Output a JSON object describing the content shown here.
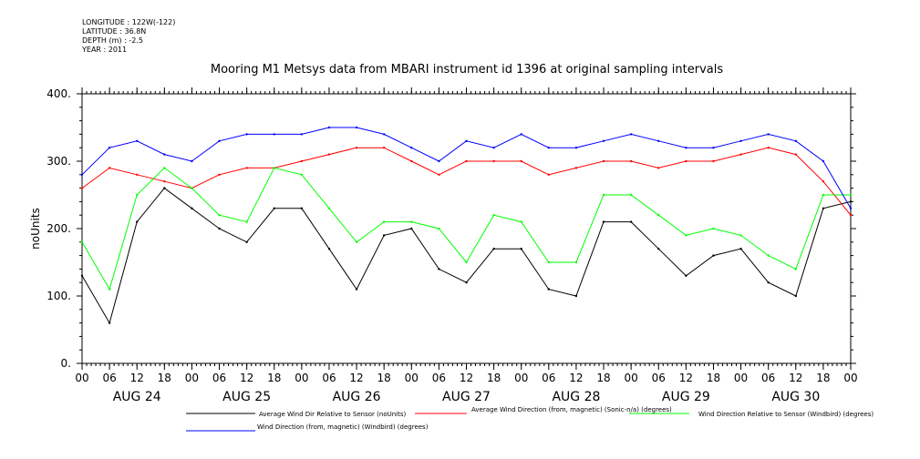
{
  "header": {
    "longitude": "LONGITUDE : 122W(-122)",
    "latitude": "LATITUDE : 36.8N",
    "depth": "DEPTH (m) : -2.5",
    "year": "YEAR : 2011"
  },
  "chart_data": {
    "type": "line",
    "title": "Mooring M1 Metsys data from MBARI instrument id 1396 at original sampling intervals",
    "ylabel": "noUnits",
    "xlabel": "",
    "ylim": [
      0,
      400
    ],
    "yticks": [
      "0.",
      "100.",
      "200.",
      "300.",
      "400."
    ],
    "xticks": [
      "00",
      "06",
      "12",
      "18",
      "00",
      "06",
      "12",
      "18",
      "00",
      "06",
      "12",
      "18",
      "00",
      "06",
      "12",
      "18",
      "00",
      "06",
      "12",
      "18",
      "00",
      "06",
      "12",
      "18",
      "00",
      "06",
      "12",
      "18",
      "00"
    ],
    "days": [
      "AUG 24",
      "AUG 25",
      "AUG 26",
      "AUG 27",
      "AUG 28",
      "AUG 29",
      "AUG 30"
    ],
    "x_units": "hours since 2011-08-24 00:00",
    "grid": false,
    "legend_position": "bottom",
    "series": [
      {
        "name": "Average Wind Dir Relative to Sensor (noUnits)",
        "color": "#000000",
        "x": [
          0,
          6,
          12,
          18,
          24,
          30,
          36,
          42,
          48,
          54,
          60,
          66,
          72,
          78,
          84,
          90,
          96,
          102,
          108,
          114,
          120,
          126,
          132,
          138,
          144,
          150,
          156,
          162,
          168
        ],
        "y": [
          130,
          60,
          210,
          260,
          230,
          200,
          180,
          230,
          230,
          170,
          110,
          190,
          200,
          140,
          120,
          170,
          170,
          110,
          100,
          210,
          210,
          170,
          130,
          160,
          170,
          120,
          100,
          230,
          240
        ]
      },
      {
        "name": "Average Wind Direction (from, magnetic) (Sonic-n/a) (degrees)",
        "color": "#ff0000",
        "x": [
          0,
          6,
          12,
          18,
          24,
          30,
          36,
          42,
          48,
          54,
          60,
          66,
          72,
          78,
          84,
          90,
          96,
          102,
          108,
          114,
          120,
          126,
          132,
          138,
          144,
          150,
          156,
          162,
          168
        ],
        "y": [
          260,
          290,
          280,
          270,
          260,
          280,
          290,
          290,
          300,
          310,
          320,
          320,
          300,
          280,
          300,
          300,
          300,
          280,
          290,
          300,
          300,
          290,
          300,
          300,
          310,
          320,
          310,
          270,
          220
        ]
      },
      {
        "name": "Wind Direction Relative to Sensor (Windbird) (degrees)",
        "color": "#00ff00",
        "x": [
          0,
          6,
          12,
          18,
          24,
          30,
          36,
          42,
          48,
          54,
          60,
          66,
          72,
          78,
          84,
          90,
          96,
          102,
          108,
          114,
          120,
          126,
          132,
          138,
          144,
          150,
          156,
          162,
          168
        ],
        "y": [
          180,
          110,
          250,
          290,
          260,
          220,
          210,
          290,
          280,
          230,
          180,
          210,
          210,
          200,
          150,
          220,
          210,
          150,
          150,
          250,
          250,
          220,
          190,
          200,
          190,
          160,
          140,
          250,
          250
        ]
      },
      {
        "name": "Wind Direction (from, magnetic) (Windbird) (degrees)",
        "color": "#0000ff",
        "x": [
          0,
          6,
          12,
          18,
          24,
          30,
          36,
          42,
          48,
          54,
          60,
          66,
          72,
          78,
          84,
          90,
          96,
          102,
          108,
          114,
          120,
          126,
          132,
          138,
          144,
          150,
          156,
          162,
          168
        ],
        "y": [
          280,
          320,
          330,
          310,
          300,
          330,
          340,
          340,
          340,
          350,
          350,
          340,
          320,
          300,
          330,
          320,
          340,
          320,
          320,
          330,
          340,
          330,
          320,
          320,
          330,
          340,
          330,
          300,
          230
        ]
      }
    ]
  }
}
